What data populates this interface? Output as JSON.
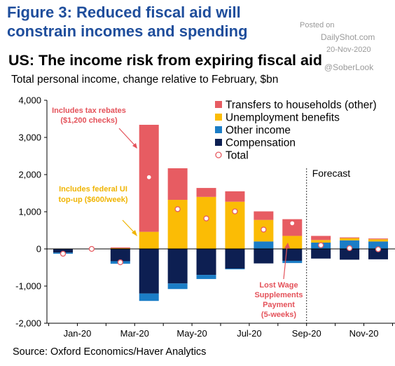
{
  "figure_title": "Figure 3: Reduced fiscal aid will constrain incomes and spending",
  "watermark": {
    "posted_on": "Posted on",
    "site": "DailyShot.com",
    "date": "20-Nov-2020",
    "handle": "@SoberLook"
  },
  "source": "Source: Oxford Economics/Haver Analytics",
  "colors": {
    "transfers": "#e75c62",
    "unemployment": "#fbbc05",
    "other": "#1b7dc6",
    "compensation": "#0d1f52",
    "total_marker": "#e75c62",
    "annotation_red": "#e4525a",
    "annotation_gold": "#f0b400"
  },
  "chart_data": {
    "type": "bar",
    "stacked": true,
    "title": "US: The income risk from expiring fiscal aid",
    "subtitle": "Total personal income, change relative to February, $bn",
    "xlabel": "",
    "ylabel": "",
    "ylim": [
      -2000,
      4000
    ],
    "yticks": [
      4000,
      3000,
      2000,
      1000,
      0,
      -1000,
      -2000
    ],
    "ytick_labels": [
      "4,000",
      "3,000",
      "2,000",
      "1,000",
      "0",
      "-1,000",
      "-2,000"
    ],
    "categories": [
      "Jan-20",
      "Feb-20",
      "Mar-20",
      "Apr-20",
      "May-20",
      "Jun-20",
      "Jul-20",
      "Aug-20",
      "Sep-20",
      "Oct-20",
      "Nov-20",
      "Dec-20"
    ],
    "xtick_labels": [
      "Jan-20",
      "Mar-20",
      "May-20",
      "Jul-20",
      "Sep-20",
      "Nov-20"
    ],
    "xtick_categories": [
      "Jan-20",
      "Mar-20",
      "May-20",
      "Jul-20",
      "Sep-20",
      "Nov-20"
    ],
    "series": [
      {
        "name": "Compensation",
        "color_key": "compensation",
        "values": [
          -100,
          0,
          -330,
          -1200,
          -930,
          -700,
          -530,
          -390,
          -320,
          -260,
          -290,
          -280
        ]
      },
      {
        "name": "Other income",
        "color_key": "other",
        "values": [
          -30,
          0,
          -70,
          -200,
          -150,
          -110,
          -20,
          200,
          -60,
          170,
          230,
          200
        ]
      },
      {
        "name": "Unemployment benefits",
        "color_key": "unemployment",
        "values": [
          0,
          0,
          20,
          460,
          1320,
          1400,
          1270,
          580,
          350,
          70,
          60,
          60
        ]
      },
      {
        "name": "Transfers to households (other)",
        "color_key": "transfers",
        "values": [
          0,
          0,
          20,
          2880,
          850,
          240,
          280,
          230,
          450,
          110,
          20,
          20
        ]
      }
    ],
    "totals": {
      "name": "Total",
      "values": [
        -130,
        0,
        -360,
        1930,
        1070,
        820,
        1010,
        520,
        690,
        100,
        20,
        -10
      ]
    },
    "legend": {
      "placement": "top-right",
      "entries": [
        "Transfers to households (other)",
        "Unemployment benefits",
        "Other income",
        "Compensation",
        "Total"
      ]
    },
    "forecast": {
      "label": "Forecast",
      "from_category": "Oct-20"
    },
    "annotations": [
      {
        "lines": [
          "Includes tax rebates",
          "($1,200 checks)"
        ],
        "points_to": "Apr-20",
        "color_key": "annotation_red"
      },
      {
        "lines": [
          "Includes federal UI",
          "top-up ($600/week)"
        ],
        "points_to": "Apr-20",
        "color_key": "annotation_gold"
      },
      {
        "lines": [
          "Lost Wage",
          "Supplements",
          "Payment",
          "(5-weeks)"
        ],
        "points_to": "Sep-20",
        "color_key": "annotation_red"
      }
    ],
    "grid": false
  }
}
